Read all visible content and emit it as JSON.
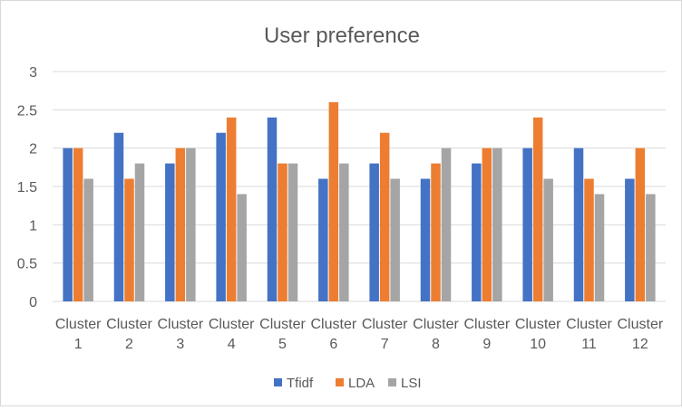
{
  "chart_data": {
    "type": "bar",
    "title": "User preference",
    "categories": [
      [
        "Cluster",
        "1"
      ],
      [
        "Cluster",
        "2"
      ],
      [
        "Cluster",
        "3"
      ],
      [
        "Cluster",
        "4"
      ],
      [
        "Cluster",
        "5"
      ],
      [
        "Cluster",
        "6"
      ],
      [
        "Cluster",
        "7"
      ],
      [
        "Cluster",
        "8"
      ],
      [
        "Cluster",
        "9"
      ],
      [
        "Cluster",
        "10"
      ],
      [
        "Cluster",
        "11"
      ],
      [
        "Cluster",
        "12"
      ]
    ],
    "series": [
      {
        "name": "Tfidf",
        "color": "#4472C4",
        "values": [
          2.0,
          2.2,
          1.8,
          2.2,
          2.4,
          1.6,
          1.8,
          1.6,
          1.8,
          2.0,
          2.0,
          1.6
        ]
      },
      {
        "name": "LDA",
        "color": "#ED7D31",
        "values": [
          2.0,
          1.6,
          2.0,
          2.4,
          1.8,
          2.6,
          2.2,
          1.8,
          2.0,
          2.4,
          1.6,
          2.0
        ]
      },
      {
        "name": "LSI",
        "color": "#A5A5A5",
        "values": [
          1.6,
          1.8,
          2.0,
          1.4,
          1.8,
          1.8,
          1.6,
          2.0,
          2.0,
          1.6,
          1.4,
          1.4
        ]
      }
    ],
    "ylim": [
      0,
      3
    ],
    "yticks": [
      "0",
      "0.5",
      "1",
      "1.5",
      "2",
      "2.5",
      "3"
    ],
    "xlabel": "",
    "ylabel": "",
    "grid": true,
    "legend_position": "bottom"
  }
}
